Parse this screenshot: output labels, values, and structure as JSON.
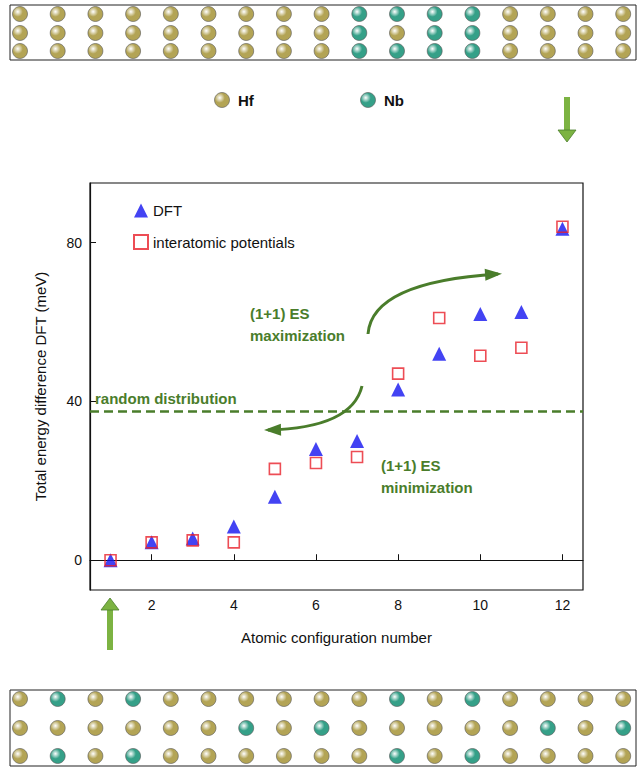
{
  "chart_data": {
    "type": "scatter",
    "xlabel": "Atomic configuration number",
    "ylabel": "Total energy difference DFT (meV)",
    "x": [
      1,
      2,
      3,
      4,
      5,
      6,
      7,
      8,
      9,
      10,
      11,
      12
    ],
    "xlim": [
      0.5,
      12.5
    ],
    "xticks": [
      2,
      4,
      6,
      8,
      10,
      12
    ],
    "ylim": [
      -7.5,
      95
    ],
    "yticks": [
      0,
      40,
      80
    ],
    "grid": false,
    "legend": "upper left",
    "series": [
      {
        "name": "DFT",
        "color": "#1414f0",
        "marker": "triangle",
        "values": [
          0,
          4.5,
          5.5,
          8.5,
          16,
          28,
          30,
          43,
          52,
          62,
          62.5,
          83.5
        ]
      },
      {
        "name": "interatomic potentials",
        "color": "#e8202a",
        "marker": "open_square",
        "values": [
          0,
          4.5,
          5,
          4.5,
          23,
          24.5,
          26,
          47,
          61,
          51.5,
          53.5,
          84
        ]
      }
    ],
    "reference_lines": [
      {
        "y": 37.5,
        "label": "random distribution",
        "color": "#4a7d2b",
        "line_style": "dashed"
      }
    ],
    "annotations": [
      "(1+1) ES maximization",
      "(1+1) ES minimization"
    ]
  },
  "structures": {
    "species": [
      {
        "label": "Hf",
        "color": "#b3a455"
      },
      {
        "label": "Nb",
        "color": "#35a088"
      }
    ],
    "top": [
      [
        "Hf",
        "Hf",
        "Hf",
        "Hf",
        "Hf",
        "Hf",
        "Hf",
        "Hf",
        "Hf",
        "Nb",
        "Nb",
        "Nb",
        "Nb",
        "Hf",
        "Hf",
        "Hf",
        "Hf"
      ],
      [
        "Hf",
        "Hf",
        "Hf",
        "Hf",
        "Hf",
        "Hf",
        "Hf",
        "Hf",
        "Hf",
        "Nb",
        "Hf",
        "Nb",
        "Nb",
        "Hf",
        "Hf",
        "Hf",
        "Hf"
      ],
      [
        "Hf",
        "Hf",
        "Hf",
        "Hf",
        "Hf",
        "Hf",
        "Hf",
        "Hf",
        "Hf",
        "Nb",
        "Nb",
        "Nb",
        "Nb",
        "Hf",
        "Hf",
        "Hf",
        "Hf"
      ]
    ],
    "bottom": [
      [
        "Hf",
        "Nb",
        "Hf",
        "Nb",
        "Hf",
        "Hf",
        "Hf",
        "Hf",
        "Hf",
        "Hf",
        "Nb",
        "Hf",
        "Nb",
        "Hf",
        "Hf",
        "Hf",
        "Hf"
      ],
      [
        "Hf",
        "Hf",
        "Hf",
        "Hf",
        "Hf",
        "Hf",
        "Nb",
        "Hf",
        "Nb",
        "Hf",
        "Hf",
        "Hf",
        "Hf",
        "Hf",
        "Nb",
        "Hf",
        "Nb"
      ],
      [
        "Hf",
        "Nb",
        "Hf",
        "Nb",
        "Hf",
        "Hf",
        "Hf",
        "Hf",
        "Hf",
        "Hf",
        "Nb",
        "Hf",
        "Nb",
        "Hf",
        "Hf",
        "Hf",
        "Hf"
      ]
    ]
  }
}
